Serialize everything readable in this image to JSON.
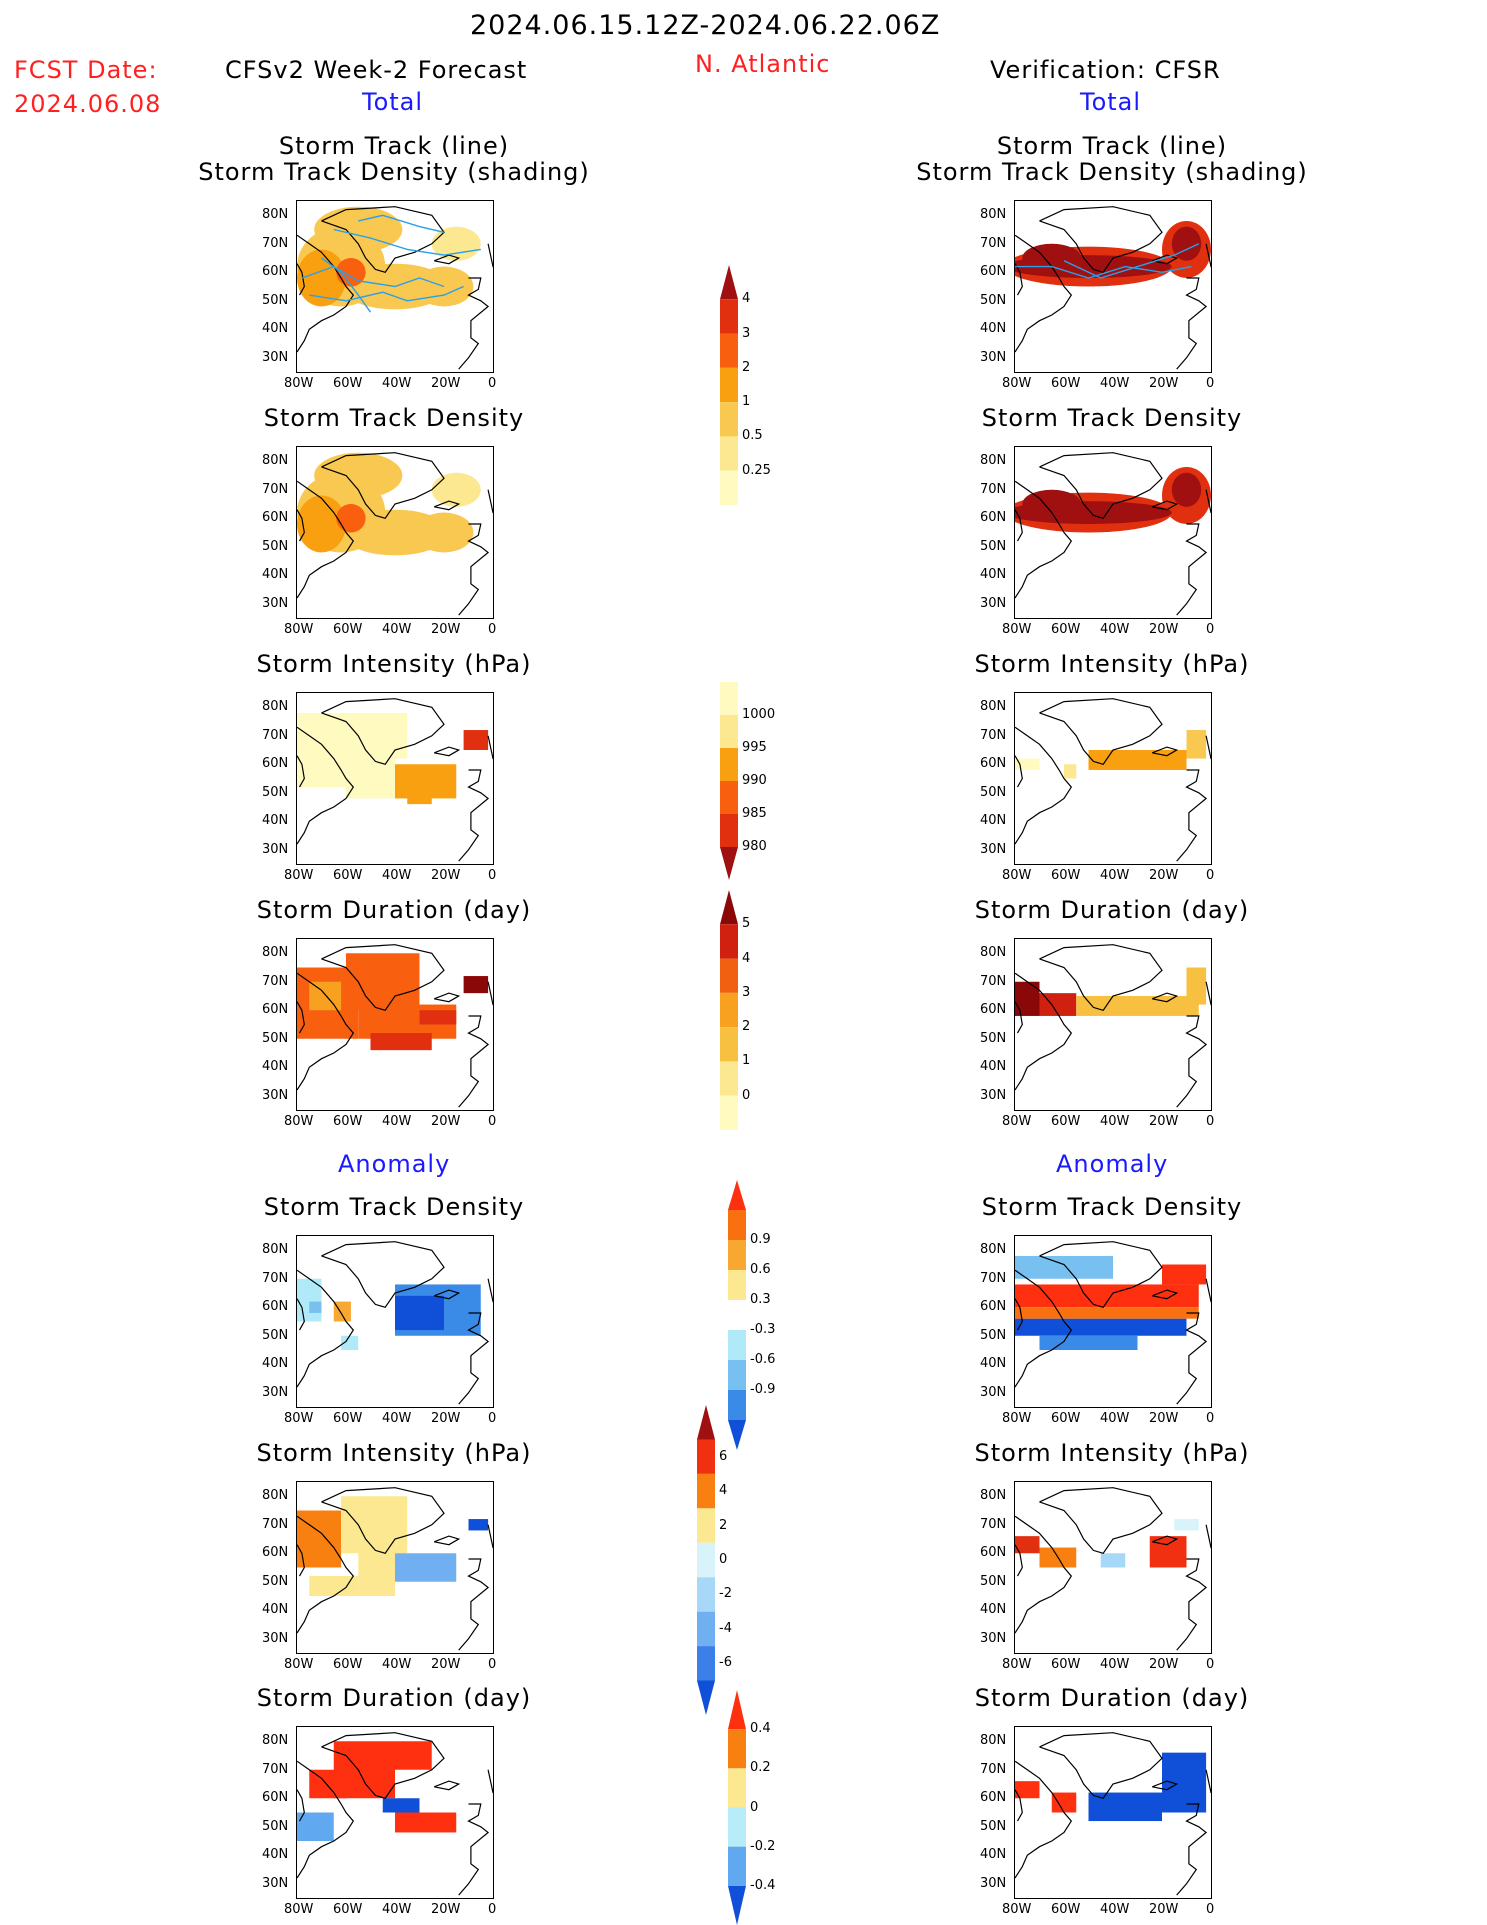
{
  "header": {
    "date_range": "2024.06.15.12Z-2024.06.22.06Z",
    "fcst_label": "FCST Date:",
    "fcst_date": "2024.06.08",
    "left_title": "CFSv2 Week-2 Forecast",
    "region": "N. Atlantic",
    "right_title": "Verification: CFSR",
    "total_left": "Total",
    "total_right": "Total",
    "anomaly_left": "Anomaly",
    "anomaly_right": "Anomaly"
  },
  "panel_titles": {
    "track_line": "Storm Track (line)",
    "track_density_shading": "Storm Track Density (shading)",
    "track_density": "Storm Track Density",
    "intensity": "Storm Intensity (hPa)",
    "duration": "Storm Duration (day)"
  },
  "axes": {
    "y_ticks": [
      "80N",
      "70N",
      "60N",
      "50N",
      "40N",
      "30N"
    ],
    "x_ticks": [
      "80W",
      "60W",
      "40W",
      "20W",
      "0"
    ]
  },
  "colorbars": [
    {
      "name": "total-density",
      "ticks": [
        "4",
        "3",
        "2",
        "1",
        "0.5",
        "0.25"
      ],
      "colors": [
        "#a01010",
        "#e03010",
        "#f86010",
        "#f8a010",
        "#f8c850",
        "#fce890",
        "#fefac0"
      ]
    },
    {
      "name": "total-intensity",
      "ticks": [
        "1000",
        "995",
        "990",
        "985",
        "980"
      ],
      "colors": [
        "#fefac0",
        "#fce890",
        "#f8a010",
        "#f86010",
        "#e03010",
        "#a01010"
      ]
    },
    {
      "name": "total-duration",
      "ticks": [
        "5",
        "4",
        "3",
        "2",
        "1",
        "0"
      ],
      "colors": [
        "#8a0808",
        "#d02010",
        "#f06010",
        "#f8a020",
        "#f8c040",
        "#fce890",
        "#fefac0"
      ]
    },
    {
      "name": "anom-density",
      "ticks": [
        "0.9",
        "0.6",
        "0.3",
        "-0.3",
        "-0.6",
        "-0.9"
      ],
      "colors": [
        "#ff3010",
        "#f87010",
        "#f8a830",
        "#fce890",
        "#ffffff",
        "#b0eaf8",
        "#78c0f0",
        "#3a8ae8",
        "#1050d8"
      ]
    },
    {
      "name": "anom-intensity",
      "ticks": [
        "6",
        "4",
        "2",
        "0",
        "-2",
        "-4",
        "-6"
      ],
      "colors": [
        "#a01010",
        "#f03010",
        "#f88010",
        "#fce890",
        "#d8f4fa",
        "#a8d8f8",
        "#70b0f0",
        "#3a80e8",
        "#1050d8"
      ]
    },
    {
      "name": "anom-duration",
      "ticks": [
        "0.4",
        "0.2",
        "0",
        "-0.2",
        "-0.4"
      ],
      "colors": [
        "#ff3010",
        "#f88010",
        "#fce890",
        "#b8ecf8",
        "#60a8f0",
        "#1050d8"
      ]
    }
  ],
  "chart_data": [
    {
      "type": "heatmap",
      "title": "Storm Track (line) / Storm Track Density (shading)",
      "column": "CFSv2 Week-2 Forecast",
      "section": "Total",
      "xlim": [
        -80,
        0
      ],
      "ylim": [
        25,
        85
      ],
      "colorbar_ticks": [
        0.25,
        0.5,
        1,
        2,
        3,
        4
      ]
    },
    {
      "type": "heatmap",
      "title": "Storm Track Density",
      "column": "CFSv2 Week-2 Forecast",
      "section": "Total",
      "xlim": [
        -80,
        0
      ],
      "ylim": [
        25,
        85
      ],
      "colorbar_ticks": [
        0.25,
        0.5,
        1,
        2,
        3,
        4
      ]
    },
    {
      "type": "heatmap",
      "title": "Storm Intensity (hPa)",
      "column": "CFSv2 Week-2 Forecast",
      "section": "Total",
      "xlim": [
        -80,
        0
      ],
      "ylim": [
        25,
        85
      ],
      "colorbar_ticks": [
        980,
        985,
        990,
        995,
        1000
      ]
    },
    {
      "type": "heatmap",
      "title": "Storm Duration (day)",
      "column": "CFSv2 Week-2 Forecast",
      "section": "Total",
      "xlim": [
        -80,
        0
      ],
      "ylim": [
        25,
        85
      ],
      "colorbar_ticks": [
        0,
        1,
        2,
        3,
        4,
        5
      ]
    },
    {
      "type": "heatmap",
      "title": "Storm Track Density",
      "column": "CFSv2 Week-2 Forecast",
      "section": "Anomaly",
      "xlim": [
        -80,
        0
      ],
      "ylim": [
        25,
        85
      ],
      "colorbar_ticks": [
        -0.9,
        -0.6,
        -0.3,
        0.3,
        0.6,
        0.9
      ]
    },
    {
      "type": "heatmap",
      "title": "Storm Intensity (hPa)",
      "column": "CFSv2 Week-2 Forecast",
      "section": "Anomaly",
      "xlim": [
        -80,
        0
      ],
      "ylim": [
        25,
        85
      ],
      "colorbar_ticks": [
        -6,
        -4,
        -2,
        0,
        2,
        4,
        6
      ]
    },
    {
      "type": "heatmap",
      "title": "Storm Duration (day)",
      "column": "CFSv2 Week-2 Forecast",
      "section": "Anomaly",
      "xlim": [
        -80,
        0
      ],
      "ylim": [
        25,
        85
      ],
      "colorbar_ticks": [
        -0.4,
        -0.2,
        0,
        0.2,
        0.4
      ]
    },
    {
      "type": "heatmap",
      "title": "Storm Track (line) / Storm Track Density (shading)",
      "column": "Verification: CFSR",
      "section": "Total",
      "xlim": [
        -80,
        0
      ],
      "ylim": [
        25,
        85
      ],
      "colorbar_ticks": [
        0.25,
        0.5,
        1,
        2,
        3,
        4
      ]
    },
    {
      "type": "heatmap",
      "title": "Storm Track Density",
      "column": "Verification: CFSR",
      "section": "Total",
      "xlim": [
        -80,
        0
      ],
      "ylim": [
        25,
        85
      ],
      "colorbar_ticks": [
        0.25,
        0.5,
        1,
        2,
        3,
        4
      ]
    },
    {
      "type": "heatmap",
      "title": "Storm Intensity (hPa)",
      "column": "Verification: CFSR",
      "section": "Total",
      "xlim": [
        -80,
        0
      ],
      "ylim": [
        25,
        85
      ],
      "colorbar_ticks": [
        980,
        985,
        990,
        995,
        1000
      ]
    },
    {
      "type": "heatmap",
      "title": "Storm Duration (day)",
      "column": "Verification: CFSR",
      "section": "Total",
      "xlim": [
        -80,
        0
      ],
      "ylim": [
        25,
        85
      ],
      "colorbar_ticks": [
        0,
        1,
        2,
        3,
        4,
        5
      ]
    },
    {
      "type": "heatmap",
      "title": "Storm Track Density",
      "column": "Verification: CFSR",
      "section": "Anomaly",
      "xlim": [
        -80,
        0
      ],
      "ylim": [
        25,
        85
      ],
      "colorbar_ticks": [
        -0.9,
        -0.6,
        -0.3,
        0.3,
        0.6,
        0.9
      ]
    },
    {
      "type": "heatmap",
      "title": "Storm Intensity (hPa)",
      "column": "Verification: CFSR",
      "section": "Anomaly",
      "xlim": [
        -80,
        0
      ],
      "ylim": [
        25,
        85
      ],
      "colorbar_ticks": [
        -6,
        -4,
        -2,
        0,
        2,
        4,
        6
      ]
    },
    {
      "type": "heatmap",
      "title": "Storm Duration (day)",
      "column": "Verification: CFSR",
      "section": "Anomaly",
      "xlim": [
        -80,
        0
      ],
      "ylim": [
        25,
        85
      ],
      "colorbar_ticks": [
        -0.4,
        -0.2,
        0,
        0.2,
        0.4
      ]
    }
  ]
}
